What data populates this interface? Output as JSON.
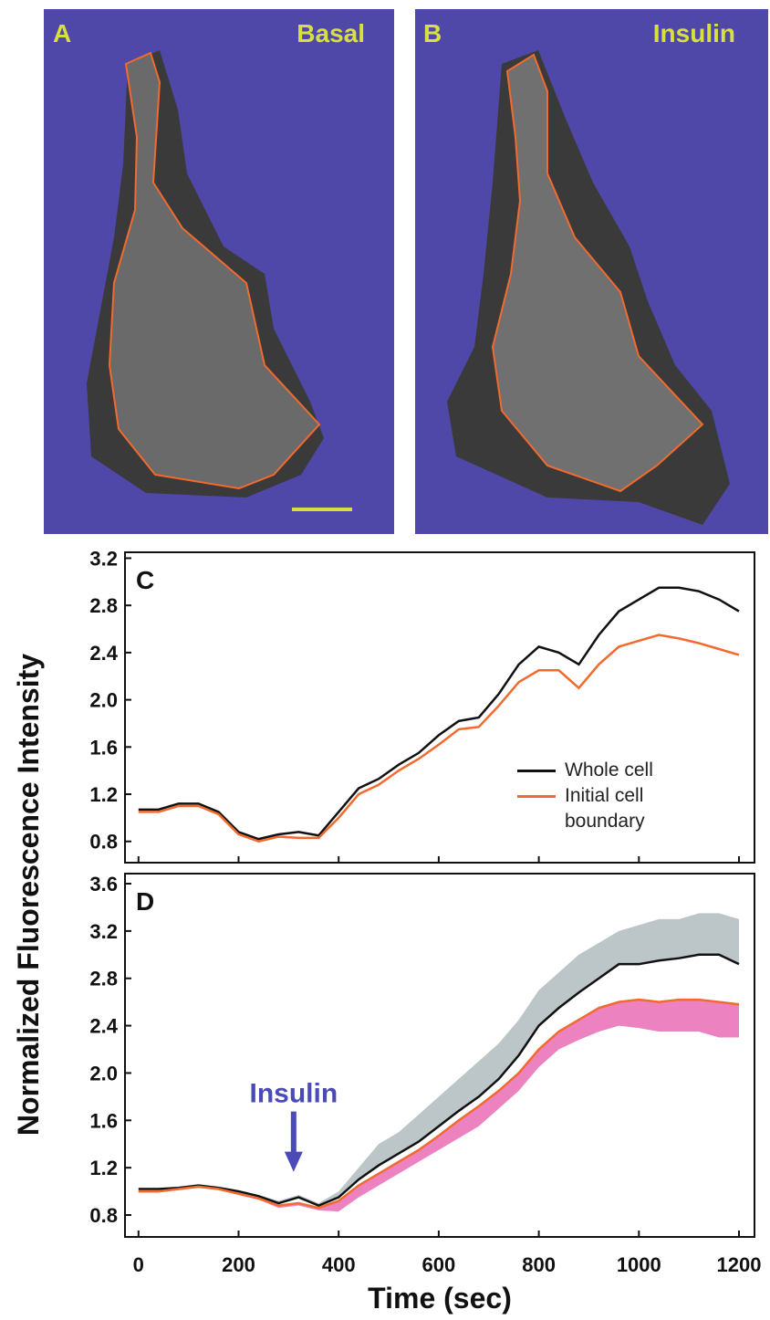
{
  "images": [
    {
      "label": "A",
      "caption": "Basal"
    },
    {
      "label": "B",
      "caption": "Insulin"
    }
  ],
  "chart_data": [
    {
      "type": "line",
      "label": "C",
      "ylabel": "Normalized Fluorescence Intensity",
      "x": [
        0,
        40,
        80,
        120,
        160,
        200,
        240,
        280,
        320,
        360,
        400,
        440,
        480,
        520,
        560,
        600,
        640,
        680,
        720,
        760,
        800,
        840,
        880,
        920,
        960,
        1000,
        1040,
        1080,
        1120,
        1160,
        1200
      ],
      "xlim": [
        -27,
        1231
      ],
      "ylim": [
        0.62,
        3.25
      ],
      "xticks": [
        0,
        200,
        400,
        600,
        800,
        1000,
        1200
      ],
      "yticks": [
        0.8,
        1.2,
        1.6,
        {
          "value": 2,
          "label": "2.0"
        },
        2.4,
        2.8,
        3.2
      ],
      "legend": "lower right",
      "series": [
        {
          "name": "Whole cell",
          "color": "#111111",
          "values": [
            1.07,
            1.07,
            1.12,
            1.12,
            1.05,
            0.88,
            0.82,
            0.86,
            0.88,
            0.85,
            1.05,
            1.25,
            1.33,
            1.45,
            1.55,
            1.7,
            1.82,
            1.85,
            2.05,
            2.3,
            2.45,
            2.4,
            2.3,
            2.55,
            2.75,
            2.85,
            2.95,
            2.95,
            2.92,
            2.85,
            2.75
          ]
        },
        {
          "name": "Initial cell boundary",
          "color": "#f26a2e",
          "values": [
            1.05,
            1.05,
            1.1,
            1.1,
            1.03,
            0.86,
            0.8,
            0.84,
            0.83,
            0.83,
            1.0,
            1.2,
            1.28,
            1.4,
            1.5,
            1.62,
            1.75,
            1.77,
            1.95,
            2.15,
            2.25,
            2.25,
            2.1,
            2.3,
            2.45,
            2.5,
            2.55,
            2.52,
            2.48,
            2.43,
            2.38
          ]
        }
      ]
    },
    {
      "type": "line",
      "label": "D",
      "xlabel": "Time (sec)",
      "x": [
        0,
        40,
        80,
        120,
        160,
        200,
        240,
        280,
        320,
        360,
        400,
        440,
        480,
        520,
        560,
        600,
        640,
        680,
        720,
        760,
        800,
        840,
        880,
        920,
        960,
        1000,
        1040,
        1080,
        1120,
        1160,
        1200
      ],
      "xlim": [
        -27,
        1231
      ],
      "ylim": [
        0.615,
        3.685
      ],
      "xticks": [
        0,
        200,
        400,
        600,
        800,
        1000,
        1200
      ],
      "yticks": [
        0.8,
        1.2,
        1.6,
        {
          "value": 2,
          "label": "2.0"
        },
        2.4,
        2.8,
        3.2,
        3.6
      ],
      "annotation": {
        "text": "Insulin",
        "x": 310,
        "y": 1.15,
        "color": "#4a4ab8"
      },
      "series": [
        {
          "type": "band",
          "color": "#bcc6c8",
          "lower": [
            1.02,
            1.02,
            1.03,
            1.05,
            1.03,
            1.0,
            0.96,
            0.9,
            0.95,
            0.88,
            0.95,
            1.1,
            1.22,
            1.32,
            1.42,
            1.55,
            1.68,
            1.8,
            1.95,
            2.15,
            2.4,
            2.55,
            2.68,
            2.8,
            2.92,
            2.92,
            2.95,
            2.97,
            3.0,
            3.0,
            2.92
          ],
          "upper": [
            1.03,
            1.03,
            1.04,
            1.06,
            1.04,
            1.01,
            0.97,
            0.92,
            0.97,
            0.9,
            1.0,
            1.2,
            1.4,
            1.5,
            1.65,
            1.8,
            1.95,
            2.1,
            2.25,
            2.45,
            2.7,
            2.85,
            3.0,
            3.1,
            3.2,
            3.25,
            3.3,
            3.3,
            3.35,
            3.35,
            3.3
          ]
        },
        {
          "type": "band",
          "color": "#ec82c0",
          "lower": [
            0.99,
            0.99,
            1.01,
            1.03,
            1.01,
            0.97,
            0.93,
            0.86,
            0.88,
            0.84,
            0.83,
            0.95,
            1.05,
            1.15,
            1.25,
            1.35,
            1.45,
            1.55,
            1.7,
            1.85,
            2.05,
            2.2,
            2.28,
            2.35,
            2.4,
            2.38,
            2.35,
            2.35,
            2.35,
            2.3,
            2.3
          ],
          "upper": [
            1.0,
            1.0,
            1.02,
            1.04,
            1.02,
            0.98,
            0.94,
            0.88,
            0.9,
            0.86,
            0.92,
            1.05,
            1.15,
            1.25,
            1.35,
            1.47,
            1.6,
            1.72,
            1.85,
            2.0,
            2.2,
            2.35,
            2.45,
            2.55,
            2.6,
            2.62,
            2.6,
            2.62,
            2.62,
            2.6,
            2.58
          ]
        },
        {
          "color": "#111111",
          "values": [
            1.02,
            1.02,
            1.03,
            1.05,
            1.03,
            1.0,
            0.96,
            0.9,
            0.95,
            0.88,
            0.95,
            1.1,
            1.22,
            1.32,
            1.42,
            1.55,
            1.68,
            1.8,
            1.95,
            2.15,
            2.4,
            2.55,
            2.68,
            2.8,
            2.92,
            2.92,
            2.95,
            2.97,
            3.0,
            3.0,
            2.92
          ]
        },
        {
          "color": "#f26a2e",
          "values": [
            1.0,
            1.0,
            1.02,
            1.04,
            1.02,
            0.98,
            0.94,
            0.88,
            0.9,
            0.86,
            0.92,
            1.05,
            1.15,
            1.25,
            1.35,
            1.47,
            1.6,
            1.72,
            1.85,
            2.0,
            2.2,
            2.35,
            2.45,
            2.55,
            2.6,
            2.62,
            2.6,
            2.62,
            2.62,
            2.6,
            2.58
          ]
        }
      ]
    }
  ]
}
